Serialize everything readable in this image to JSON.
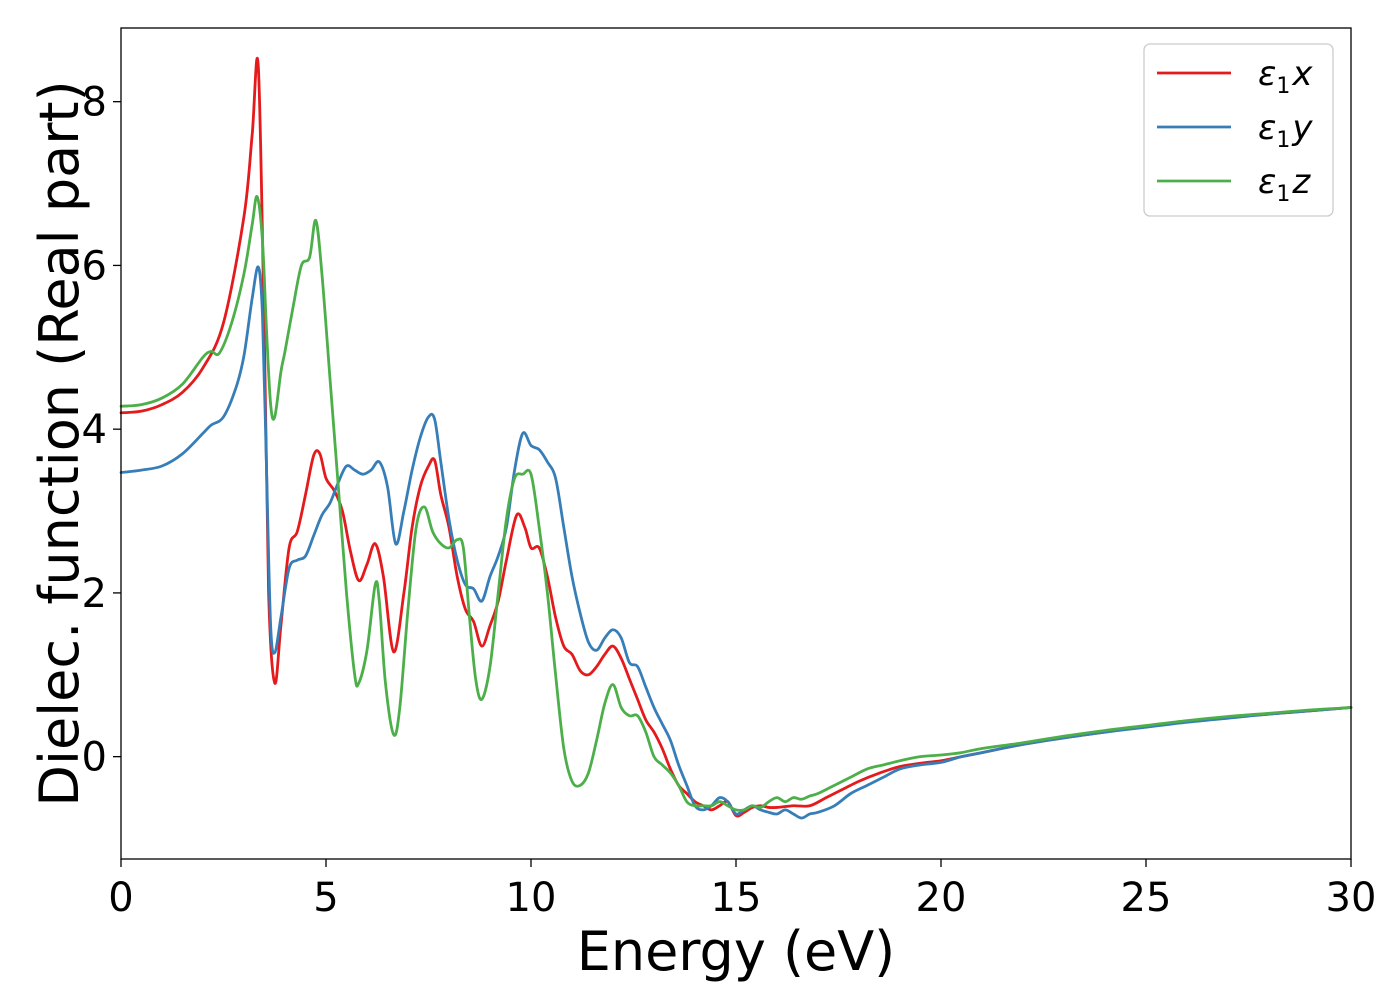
{
  "chart_data": {
    "type": "line",
    "xlabel": "Energy (eV)",
    "ylabel": "Dielec. function (Real part)",
    "xlim": [
      0,
      30
    ],
    "ylim": [
      -1.25,
      8.9
    ],
    "xticks": [
      0,
      5,
      10,
      15,
      20,
      25,
      30
    ],
    "yticks": [
      0,
      2,
      4,
      6,
      8
    ],
    "grid": false,
    "legend_position": "top-right",
    "series": [
      {
        "name": "ε1x",
        "legend": {
          "greek": "ε",
          "sub": "1",
          "var": "x"
        },
        "color": "#e41a1c",
        "x": [
          0,
          0.5,
          1.0,
          1.5,
          2.0,
          2.5,
          3.0,
          3.2,
          3.35,
          3.5,
          3.6,
          3.75,
          3.9,
          4.1,
          4.3,
          4.5,
          4.7,
          4.85,
          5.0,
          5.2,
          5.4,
          5.6,
          5.8,
          6.0,
          6.2,
          6.4,
          6.65,
          6.9,
          7.1,
          7.3,
          7.5,
          7.65,
          7.8,
          8.0,
          8.2,
          8.4,
          8.6,
          8.8,
          9.0,
          9.2,
          9.4,
          9.65,
          9.85,
          10.0,
          10.2,
          10.4,
          10.6,
          10.8,
          11.0,
          11.2,
          11.4,
          11.6,
          11.8,
          12.0,
          12.2,
          12.4,
          12.6,
          12.8,
          13.0,
          13.2,
          13.4,
          13.6,
          13.8,
          14.0,
          14.2,
          14.4,
          14.6,
          14.8,
          15.0,
          15.2,
          15.4,
          15.6,
          15.8,
          16.0,
          16.4,
          16.8,
          17.2,
          17.6,
          18.0,
          18.5,
          19.0,
          19.5,
          20.0,
          20.5,
          21.0,
          22.0,
          23.0,
          24.0,
          25.0,
          26.0,
          27.0,
          28.0,
          29.0,
          30.0
        ],
        "y": [
          4.2,
          4.22,
          4.3,
          4.45,
          4.75,
          5.3,
          6.6,
          7.6,
          8.42,
          5.0,
          2.0,
          0.9,
          1.6,
          2.55,
          2.75,
          3.2,
          3.68,
          3.7,
          3.4,
          3.25,
          3.0,
          2.5,
          2.15,
          2.35,
          2.6,
          2.2,
          1.28,
          2.0,
          2.8,
          3.3,
          3.55,
          3.62,
          3.2,
          2.8,
          2.2,
          1.8,
          1.65,
          1.35,
          1.6,
          1.9,
          2.4,
          2.95,
          2.8,
          2.55,
          2.55,
          2.2,
          1.7,
          1.35,
          1.25,
          1.05,
          1.0,
          1.1,
          1.25,
          1.35,
          1.2,
          0.95,
          0.7,
          0.45,
          0.3,
          0.1,
          -0.15,
          -0.35,
          -0.45,
          -0.55,
          -0.6,
          -0.65,
          -0.6,
          -0.55,
          -0.72,
          -0.68,
          -0.62,
          -0.6,
          -0.62,
          -0.62,
          -0.6,
          -0.6,
          -0.5,
          -0.4,
          -0.3,
          -0.2,
          -0.12,
          -0.08,
          -0.05,
          0.0,
          0.05,
          0.15,
          0.23,
          0.3,
          0.37,
          0.43,
          0.48,
          0.52,
          0.56,
          0.6
        ]
      },
      {
        "name": "ε1y",
        "legend": {
          "greek": "ε",
          "sub": "1",
          "var": "y"
        },
        "color": "#377eb8",
        "x": [
          0,
          0.5,
          1.0,
          1.5,
          2.0,
          2.2,
          2.5,
          2.8,
          3.0,
          3.2,
          3.35,
          3.45,
          3.55,
          3.65,
          3.75,
          3.9,
          4.1,
          4.3,
          4.5,
          4.7,
          4.9,
          5.1,
          5.3,
          5.5,
          5.7,
          5.9,
          6.1,
          6.3,
          6.5,
          6.7,
          6.9,
          7.1,
          7.3,
          7.5,
          7.65,
          7.8,
          8.0,
          8.2,
          8.4,
          8.6,
          8.8,
          9.0,
          9.2,
          9.4,
          9.6,
          9.8,
          10.0,
          10.2,
          10.4,
          10.6,
          10.8,
          11.0,
          11.2,
          11.4,
          11.6,
          11.8,
          12.0,
          12.2,
          12.4,
          12.6,
          12.8,
          13.0,
          13.2,
          13.4,
          13.6,
          13.8,
          14.0,
          14.2,
          14.4,
          14.6,
          14.8,
          15.0,
          15.2,
          15.4,
          15.6,
          15.8,
          16.0,
          16.2,
          16.4,
          16.6,
          16.8,
          17.0,
          17.4,
          17.8,
          18.2,
          18.6,
          19.0,
          19.5,
          20.0,
          20.5,
          21.0,
          22.0,
          23.0,
          24.0,
          25.0,
          26.0,
          27.0,
          28.0,
          29.0,
          30.0
        ],
        "y": [
          3.47,
          3.5,
          3.55,
          3.7,
          3.95,
          4.05,
          4.15,
          4.5,
          4.9,
          5.6,
          5.98,
          5.4,
          3.5,
          1.6,
          1.27,
          1.7,
          2.3,
          2.4,
          2.45,
          2.7,
          2.95,
          3.1,
          3.35,
          3.55,
          3.5,
          3.45,
          3.5,
          3.6,
          3.3,
          2.6,
          3.0,
          3.5,
          3.9,
          4.15,
          4.12,
          3.6,
          2.9,
          2.4,
          2.1,
          2.05,
          1.9,
          2.2,
          2.45,
          2.8,
          3.5,
          3.95,
          3.8,
          3.75,
          3.6,
          3.4,
          2.8,
          2.2,
          1.75,
          1.4,
          1.3,
          1.45,
          1.55,
          1.45,
          1.15,
          1.1,
          0.85,
          0.6,
          0.4,
          0.2,
          -0.1,
          -0.35,
          -0.6,
          -0.65,
          -0.6,
          -0.5,
          -0.55,
          -0.7,
          -0.65,
          -0.6,
          -0.65,
          -0.68,
          -0.7,
          -0.65,
          -0.7,
          -0.75,
          -0.7,
          -0.68,
          -0.6,
          -0.45,
          -0.35,
          -0.25,
          -0.15,
          -0.1,
          -0.07,
          0.0,
          0.05,
          0.15,
          0.23,
          0.3,
          0.36,
          0.42,
          0.47,
          0.52,
          0.56,
          0.6
        ]
      },
      {
        "name": "ε1z",
        "legend": {
          "greek": "ε",
          "sub": "1",
          "var": "z"
        },
        "color": "#4daf4a",
        "x": [
          0,
          0.5,
          1.0,
          1.5,
          2.0,
          2.2,
          2.4,
          2.7,
          3.0,
          3.2,
          3.32,
          3.45,
          3.55,
          3.65,
          3.75,
          3.9,
          4.0,
          4.2,
          4.4,
          4.6,
          4.75,
          4.9,
          5.1,
          5.3,
          5.5,
          5.7,
          5.8,
          6.0,
          6.2,
          6.3,
          6.45,
          6.65,
          6.8,
          7.0,
          7.2,
          7.4,
          7.6,
          7.8,
          8.0,
          8.2,
          8.35,
          8.5,
          8.65,
          8.8,
          9.0,
          9.2,
          9.4,
          9.6,
          9.8,
          10.0,
          10.2,
          10.4,
          10.6,
          10.8,
          11.0,
          11.2,
          11.4,
          11.6,
          11.8,
          12.0,
          12.2,
          12.4,
          12.6,
          12.8,
          13.0,
          13.2,
          13.4,
          13.6,
          13.8,
          14.0,
          14.2,
          14.4,
          14.6,
          14.8,
          15.0,
          15.2,
          15.4,
          15.6,
          15.8,
          16.0,
          16.2,
          16.4,
          16.6,
          16.8,
          17.0,
          17.4,
          17.8,
          18.2,
          18.6,
          19.0,
          19.5,
          20.0,
          20.5,
          21.0,
          22.0,
          23.0,
          24.0,
          25.0,
          26.0,
          27.0,
          28.0,
          29.0,
          30.0
        ],
        "y": [
          4.28,
          4.3,
          4.38,
          4.55,
          4.88,
          4.95,
          4.93,
          5.3,
          5.9,
          6.5,
          6.84,
          6.3,
          5.2,
          4.3,
          4.15,
          4.7,
          4.95,
          5.5,
          6.0,
          6.1,
          6.55,
          5.9,
          4.6,
          3.3,
          2.0,
          1.0,
          0.9,
          1.3,
          2.1,
          1.9,
          0.9,
          0.27,
          0.6,
          1.8,
          2.8,
          3.05,
          2.75,
          2.6,
          2.55,
          2.65,
          2.55,
          1.7,
          0.95,
          0.7,
          1.1,
          2.0,
          2.9,
          3.4,
          3.45,
          3.45,
          2.8,
          2.0,
          1.0,
          0.1,
          -0.3,
          -0.35,
          -0.2,
          0.2,
          0.65,
          0.88,
          0.6,
          0.5,
          0.5,
          0.3,
          0.0,
          -0.1,
          -0.2,
          -0.35,
          -0.55,
          -0.6,
          -0.6,
          -0.6,
          -0.55,
          -0.6,
          -0.65,
          -0.65,
          -0.6,
          -0.62,
          -0.55,
          -0.5,
          -0.55,
          -0.5,
          -0.52,
          -0.48,
          -0.45,
          -0.35,
          -0.25,
          -0.15,
          -0.1,
          -0.05,
          0.0,
          0.02,
          0.05,
          0.1,
          0.17,
          0.25,
          0.32,
          0.38,
          0.44,
          0.49,
          0.53,
          0.57,
          0.6
        ]
      }
    ]
  }
}
